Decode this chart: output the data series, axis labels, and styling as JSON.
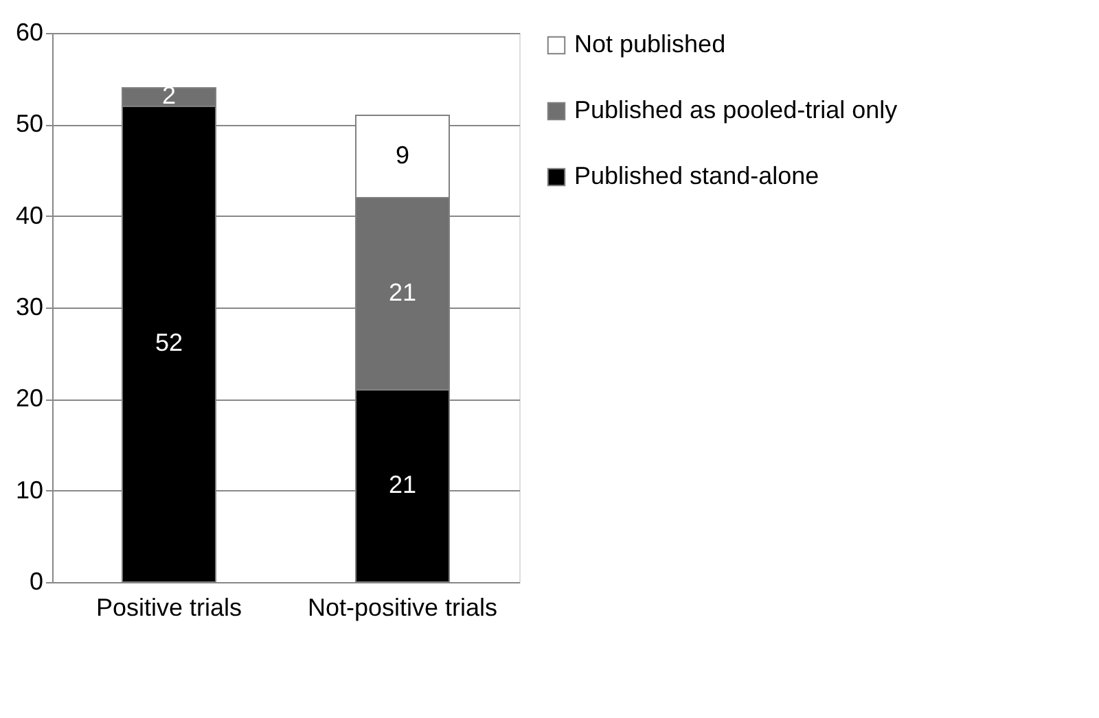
{
  "chart_data": {
    "type": "bar",
    "stacked": true,
    "categories": [
      "Positive trials",
      "Not-positive trials"
    ],
    "series": [
      {
        "name": "Published stand-alone",
        "color": "#000000",
        "values": [
          52,
          21
        ]
      },
      {
        "name": "Published as pooled-trial only",
        "color": "#707070",
        "values": [
          2,
          21
        ]
      },
      {
        "name": "Not published",
        "color": "#ffffff",
        "values": [
          null,
          9
        ]
      }
    ],
    "ylim": [
      0,
      60
    ],
    "yticks": [
      0,
      10,
      20,
      30,
      40,
      50,
      60
    ],
    "grid": "y",
    "legend": "right",
    "data_labels": true
  }
}
